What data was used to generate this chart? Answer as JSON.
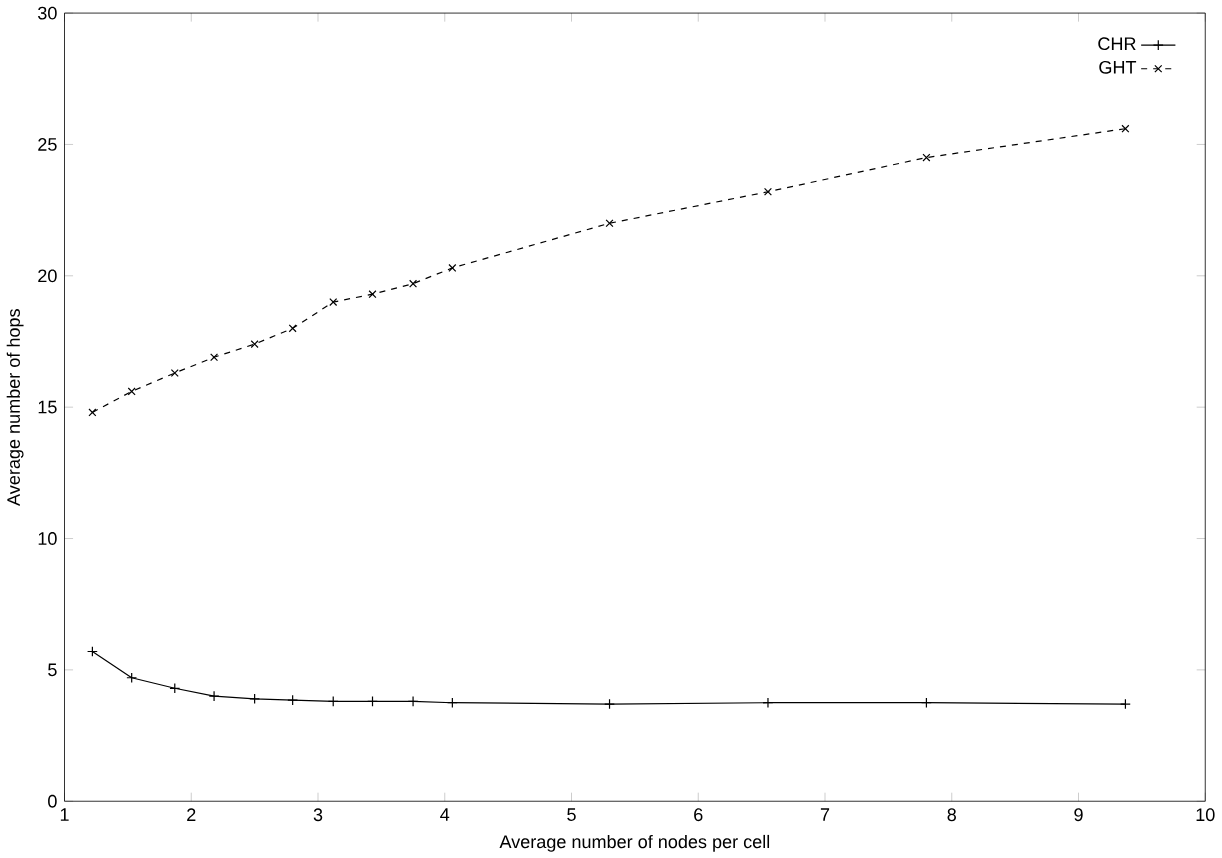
{
  "chart_data": {
    "type": "line",
    "xlabel": "Average number of nodes per cell",
    "ylabel": "Average number of hops",
    "x": [
      1.22,
      1.53,
      1.87,
      2.18,
      2.5,
      2.8,
      3.12,
      3.43,
      3.75,
      4.06,
      5.3,
      6.55,
      7.8,
      9.37
    ],
    "series": [
      {
        "name": "CHR",
        "color": "#000000",
        "marker": "cross",
        "line_style": "solid",
        "values": [
          5.7,
          4.7,
          4.3,
          4.0,
          3.9,
          3.85,
          3.8,
          3.8,
          3.8,
          3.75,
          3.7,
          3.75,
          3.75,
          3.7
        ]
      },
      {
        "name": "GHT",
        "color": "#000000",
        "marker": "x",
        "line_style": "dashed",
        "values": [
          14.8,
          15.6,
          16.3,
          16.9,
          17.4,
          18.0,
          19.0,
          19.3,
          19.7,
          20.3,
          22.0,
          23.2,
          24.5,
          25.6
        ]
      }
    ],
    "xlim": [
      1,
      10
    ],
    "ylim": [
      0,
      30
    ],
    "xticks": [
      1,
      2,
      3,
      4,
      5,
      6,
      7,
      8,
      9,
      10
    ],
    "yticks": [
      0,
      5,
      10,
      15,
      20,
      25,
      30
    ],
    "grid": false,
    "legend": "top right"
  }
}
